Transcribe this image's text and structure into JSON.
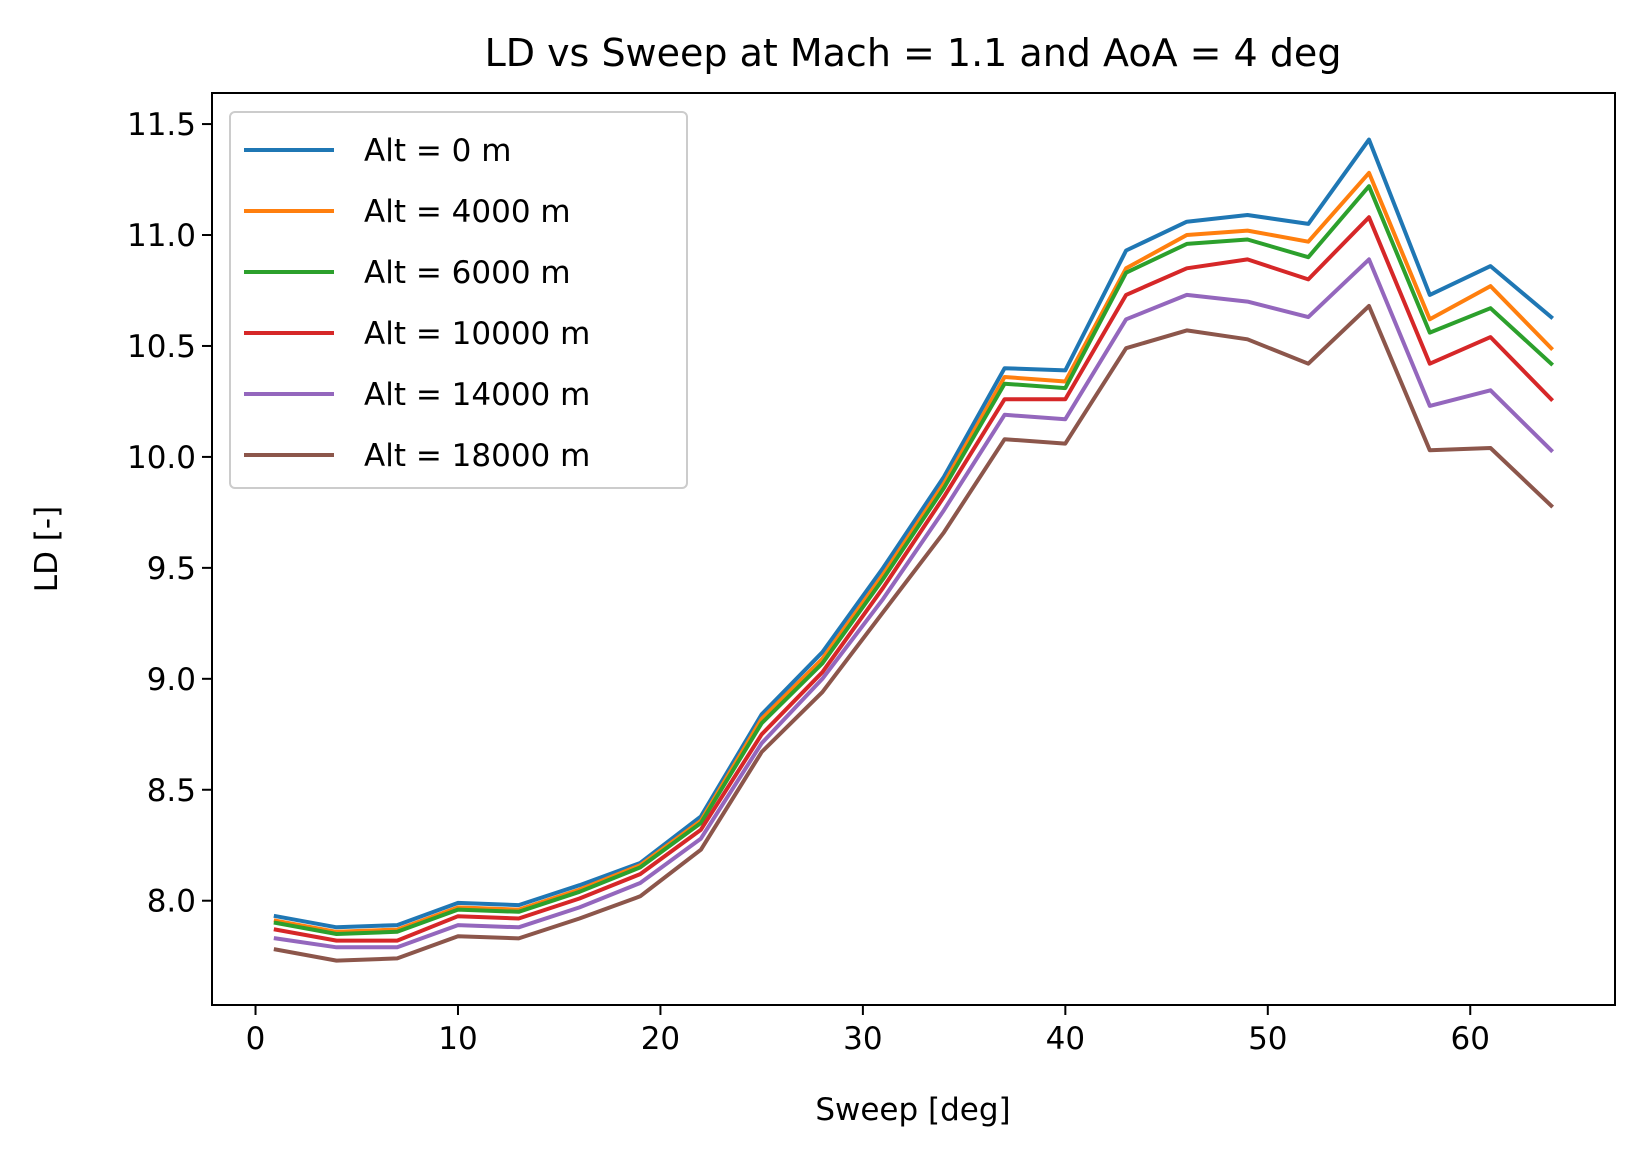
{
  "chart_data": {
    "type": "line",
    "title": "LD vs Sweep at Mach = 1.1 and AoA = 4 deg",
    "xlabel": "Sweep [deg]",
    "ylabel": "LD [-]",
    "xlim": [
      -2.15,
      67.15
    ],
    "ylim": [
      7.53,
      11.64
    ],
    "xticks": [
      0,
      10,
      20,
      30,
      40,
      50,
      60
    ],
    "xtick_labels": [
      "0",
      "10",
      "20",
      "30",
      "40",
      "50",
      "60"
    ],
    "yticks": [
      8.0,
      8.5,
      9.0,
      9.5,
      10.0,
      10.5,
      11.0,
      11.5
    ],
    "ytick_labels": [
      "8.0",
      "8.5",
      "9.0",
      "9.5",
      "10.0",
      "10.5",
      "11.0",
      "11.5"
    ],
    "grid": false,
    "legend_position": "top-left",
    "x": [
      1,
      4,
      7,
      10,
      13,
      16,
      19,
      22,
      25,
      28,
      31,
      34,
      37,
      40,
      43,
      46,
      49,
      52,
      55,
      58,
      61,
      64
    ],
    "series": [
      {
        "name": "Alt = 0 m",
        "color": "#1f77b4",
        "values": [
          7.93,
          7.88,
          7.89,
          7.99,
          7.98,
          8.07,
          8.17,
          8.38,
          8.84,
          9.12,
          9.5,
          9.91,
          10.4,
          10.39,
          10.93,
          11.06,
          11.09,
          11.05,
          11.43,
          10.73,
          10.86,
          10.63
        ]
      },
      {
        "name": "Alt = 4000 m",
        "color": "#ff7f0e",
        "values": [
          7.91,
          7.86,
          7.87,
          7.97,
          7.96,
          8.05,
          8.16,
          8.36,
          8.82,
          9.09,
          9.47,
          9.88,
          10.36,
          10.34,
          10.85,
          11.0,
          11.02,
          10.97,
          11.28,
          10.62,
          10.77,
          10.49
        ]
      },
      {
        "name": "Alt = 6000 m",
        "color": "#2ca02c",
        "values": [
          7.9,
          7.85,
          7.86,
          7.96,
          7.95,
          8.04,
          8.15,
          8.35,
          8.8,
          9.07,
          9.45,
          9.86,
          10.33,
          10.31,
          10.83,
          10.96,
          10.98,
          10.9,
          11.22,
          10.56,
          10.67,
          10.42
        ]
      },
      {
        "name": "Alt = 10000 m",
        "color": "#d62728",
        "values": [
          7.87,
          7.82,
          7.82,
          7.93,
          7.92,
          8.01,
          8.12,
          8.32,
          8.75,
          9.03,
          9.41,
          9.82,
          10.26,
          10.26,
          10.73,
          10.85,
          10.89,
          10.8,
          11.08,
          10.42,
          10.54,
          10.26
        ]
      },
      {
        "name": "Alt = 14000 m",
        "color": "#9467bd",
        "values": [
          7.83,
          7.79,
          7.79,
          7.89,
          7.88,
          7.97,
          8.08,
          8.28,
          8.71,
          9.0,
          9.36,
          9.76,
          10.19,
          10.17,
          10.62,
          10.73,
          10.7,
          10.63,
          10.89,
          10.23,
          10.3,
          10.03
        ]
      },
      {
        "name": "Alt = 18000 m",
        "color": "#8c564b",
        "values": [
          7.78,
          7.73,
          7.74,
          7.84,
          7.83,
          7.92,
          8.02,
          8.23,
          8.67,
          8.94,
          9.3,
          9.66,
          10.08,
          10.06,
          10.49,
          10.57,
          10.53,
          10.42,
          10.68,
          10.03,
          10.04,
          9.78
        ]
      }
    ]
  }
}
